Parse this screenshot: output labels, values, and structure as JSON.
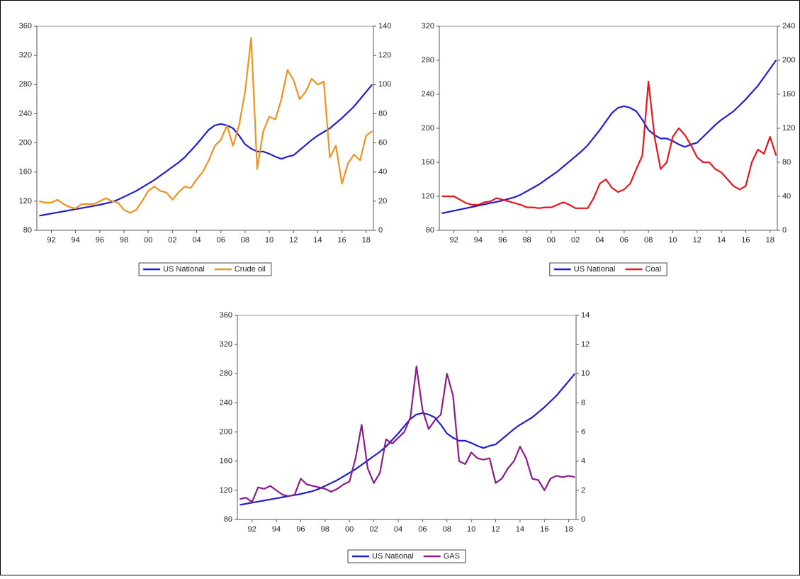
{
  "chart_data": [
    {
      "type": "line",
      "x": [
        1991,
        1991.5,
        1992,
        1992.5,
        1993,
        1993.5,
        1994,
        1994.5,
        1995,
        1995.5,
        1996,
        1996.5,
        1997,
        1997.5,
        1998,
        1998.5,
        1999,
        1999.5,
        2000,
        2000.5,
        2001,
        2001.5,
        2002,
        2002.5,
        2003,
        2003.5,
        2004,
        2004.5,
        2005,
        2005.5,
        2006,
        2006.5,
        2007,
        2007.5,
        2008,
        2008.5,
        2009,
        2009.5,
        2010,
        2010.5,
        2011,
        2011.5,
        2012,
        2012.5,
        2013,
        2013.5,
        2014,
        2014.5,
        2015,
        2015.5,
        2016,
        2016.5,
        2017,
        2017.5,
        2018,
        2018.5
      ],
      "xlim": [
        1990.8,
        2018.6
      ],
      "xticks": [
        {
          "value": 1992,
          "label": "92"
        },
        {
          "value": 1994,
          "label": "94"
        },
        {
          "value": 1996,
          "label": "96"
        },
        {
          "value": 1998,
          "label": "98"
        },
        {
          "value": 2000,
          "label": "00"
        },
        {
          "value": 2002,
          "label": "02"
        },
        {
          "value": 2004,
          "label": "04"
        },
        {
          "value": 2006,
          "label": "06"
        },
        {
          "value": 2008,
          "label": "08"
        },
        {
          "value": 2010,
          "label": "10"
        },
        {
          "value": 2012,
          "label": "12"
        },
        {
          "value": 2014,
          "label": "14"
        },
        {
          "value": 2016,
          "label": "16"
        },
        {
          "value": 2018,
          "label": "18"
        }
      ],
      "ylim": [
        80,
        360
      ],
      "yticks": [
        80,
        120,
        160,
        200,
        240,
        280,
        320,
        360
      ],
      "y2lim": [
        0,
        140
      ],
      "y2ticks": [
        0,
        20,
        40,
        60,
        80,
        100,
        120,
        140
      ],
      "series": [
        {
          "name": "US National",
          "color": "#1f1fd1",
          "values": [
            100,
            101.5,
            103,
            104.5,
            106,
            107.5,
            109,
            110.5,
            112,
            113.5,
            115,
            117,
            119,
            122,
            126,
            130,
            134,
            139,
            144,
            149,
            155,
            161,
            167,
            173,
            180,
            189,
            198,
            208,
            218,
            224,
            226,
            224,
            220,
            210,
            198,
            192,
            188,
            188,
            185,
            181,
            178,
            181,
            183,
            190,
            197,
            204,
            210,
            215,
            220,
            227,
            234,
            242,
            250,
            260,
            270,
            280
          ]
        },
        {
          "name": "Crude oil",
          "color": "#f0921e",
          "axis": "y2",
          "values": [
            20,
            19,
            19,
            21,
            18,
            16,
            15,
            18,
            18,
            18,
            20,
            22,
            20,
            19,
            14,
            12,
            14,
            20,
            27,
            30,
            27,
            26,
            21,
            26,
            30,
            29,
            35,
            40,
            48,
            58,
            62,
            72,
            58,
            72,
            95,
            132,
            42,
            68,
            78,
            76,
            90,
            110,
            103,
            90,
            95,
            104,
            100,
            102,
            50,
            58,
            32,
            46,
            52,
            48,
            65,
            68
          ]
        }
      ]
    },
    {
      "type": "line",
      "x": [
        1991,
        1991.5,
        1992,
        1992.5,
        1993,
        1993.5,
        1994,
        1994.5,
        1995,
        1995.5,
        1996,
        1996.5,
        1997,
        1997.5,
        1998,
        1998.5,
        1999,
        1999.5,
        2000,
        2000.5,
        2001,
        2001.5,
        2002,
        2002.5,
        2003,
        2003.5,
        2004,
        2004.5,
        2005,
        2005.5,
        2006,
        2006.5,
        2007,
        2007.5,
        2008,
        2008.5,
        2009,
        2009.5,
        2010,
        2010.5,
        2011,
        2011.5,
        2012,
        2012.5,
        2013,
        2013.5,
        2014,
        2014.5,
        2015,
        2015.5,
        2016,
        2016.5,
        2017,
        2017.5,
        2018,
        2018.5
      ],
      "xlim": [
        1990.8,
        2018.6
      ],
      "xticks": [
        {
          "value": 1992,
          "label": "92"
        },
        {
          "value": 1994,
          "label": "94"
        },
        {
          "value": 1996,
          "label": "96"
        },
        {
          "value": 1998,
          "label": "98"
        },
        {
          "value": 2000,
          "label": "00"
        },
        {
          "value": 2002,
          "label": "02"
        },
        {
          "value": 2004,
          "label": "04"
        },
        {
          "value": 2006,
          "label": "06"
        },
        {
          "value": 2008,
          "label": "08"
        },
        {
          "value": 2010,
          "label": "10"
        },
        {
          "value": 2012,
          "label": "12"
        },
        {
          "value": 2014,
          "label": "14"
        },
        {
          "value": 2016,
          "label": "16"
        },
        {
          "value": 2018,
          "label": "18"
        }
      ],
      "ylim": [
        80,
        320
      ],
      "yticks": [
        80,
        120,
        160,
        200,
        240,
        280,
        320
      ],
      "y2lim": [
        0,
        240
      ],
      "y2ticks": [
        0,
        40,
        80,
        120,
        160,
        200,
        240
      ],
      "series": [
        {
          "name": "US National",
          "color": "#1f1fd1",
          "values": [
            100,
            101.5,
            103,
            104.5,
            106,
            107.5,
            109,
            110.5,
            112,
            113.5,
            115,
            117,
            119,
            122,
            126,
            130,
            134,
            139,
            144,
            149,
            155,
            161,
            167,
            173,
            180,
            189,
            198,
            208,
            218,
            224,
            226,
            224,
            220,
            210,
            198,
            192,
            188,
            188,
            185,
            181,
            178,
            181,
            183,
            190,
            197,
            204,
            210,
            215,
            220,
            227,
            234,
            242,
            250,
            260,
            270,
            280
          ]
        },
        {
          "name": "Coal",
          "color": "#e8161b",
          "axis": "y2",
          "values": [
            40,
            40,
            40,
            36,
            32,
            30,
            30,
            33,
            34,
            38,
            36,
            34,
            32,
            30,
            27,
            27,
            26,
            27,
            27,
            30,
            33,
            30,
            26,
            26,
            26,
            38,
            55,
            60,
            50,
            45,
            48,
            55,
            72,
            88,
            175,
            110,
            72,
            80,
            110,
            120,
            112,
            100,
            86,
            80,
            80,
            72,
            68,
            60,
            52,
            48,
            52,
            80,
            95,
            90,
            110,
            88
          ]
        }
      ]
    },
    {
      "type": "line",
      "x": [
        1991,
        1991.5,
        1992,
        1992.5,
        1993,
        1993.5,
        1994,
        1994.5,
        1995,
        1995.5,
        1996,
        1996.5,
        1997,
        1997.5,
        1998,
        1998.5,
        1999,
        1999.5,
        2000,
        2000.5,
        2001,
        2001.5,
        2002,
        2002.5,
        2003,
        2003.5,
        2004,
        2004.5,
        2005,
        2005.5,
        2006,
        2006.5,
        2007,
        2007.5,
        2008,
        2008.5,
        2009,
        2009.5,
        2010,
        2010.5,
        2011,
        2011.5,
        2012,
        2012.5,
        2013,
        2013.5,
        2014,
        2014.5,
        2015,
        2015.5,
        2016,
        2016.5,
        2017,
        2017.5,
        2018,
        2018.5
      ],
      "xlim": [
        1990.8,
        2018.6
      ],
      "xticks": [
        {
          "value": 1992,
          "label": "92"
        },
        {
          "value": 1994,
          "label": "94"
        },
        {
          "value": 1996,
          "label": "96"
        },
        {
          "value": 1998,
          "label": "98"
        },
        {
          "value": 2000,
          "label": "00"
        },
        {
          "value": 2002,
          "label": "02"
        },
        {
          "value": 2004,
          "label": "04"
        },
        {
          "value": 2006,
          "label": "06"
        },
        {
          "value": 2008,
          "label": "08"
        },
        {
          "value": 2010,
          "label": "10"
        },
        {
          "value": 2012,
          "label": "12"
        },
        {
          "value": 2014,
          "label": "14"
        },
        {
          "value": 2016,
          "label": "16"
        },
        {
          "value": 2018,
          "label": "18"
        }
      ],
      "ylim": [
        80,
        360
      ],
      "yticks": [
        80,
        120,
        160,
        200,
        240,
        280,
        320,
        360
      ],
      "y2lim": [
        0,
        14
      ],
      "y2ticks": [
        0,
        2,
        4,
        6,
        8,
        10,
        12,
        14
      ],
      "series": [
        {
          "name": "US National",
          "color": "#1f1fd1",
          "values": [
            100,
            101.5,
            103,
            104.5,
            106,
            107.5,
            109,
            110.5,
            112,
            113.5,
            115,
            117,
            119,
            122,
            126,
            130,
            134,
            139,
            144,
            149,
            155,
            161,
            167,
            173,
            180,
            189,
            198,
            208,
            218,
            224,
            226,
            224,
            220,
            210,
            198,
            192,
            188,
            188,
            185,
            181,
            178,
            181,
            183,
            190,
            197,
            204,
            210,
            215,
            220,
            227,
            234,
            242,
            250,
            260,
            270,
            280
          ]
        },
        {
          "name": "GAS",
          "color": "#8b1a8b",
          "axis": "y2",
          "values": [
            1.4,
            1.5,
            1.2,
            2.2,
            2.1,
            2.3,
            2.0,
            1.7,
            1.6,
            1.7,
            2.8,
            2.4,
            2.3,
            2.2,
            2.1,
            1.9,
            2.1,
            2.4,
            2.6,
            4.2,
            6.5,
            3.5,
            2.5,
            3.2,
            5.5,
            5.2,
            5.6,
            6.0,
            7.0,
            10.5,
            7.5,
            6.2,
            6.8,
            7.2,
            10.0,
            8.5,
            4.0,
            3.8,
            4.6,
            4.2,
            4.1,
            4.2,
            2.5,
            2.8,
            3.5,
            4.0,
            5.0,
            4.2,
            2.8,
            2.7,
            2.0,
            2.8,
            3.0,
            2.9,
            3.0,
            2.9
          ]
        }
      ]
    }
  ]
}
